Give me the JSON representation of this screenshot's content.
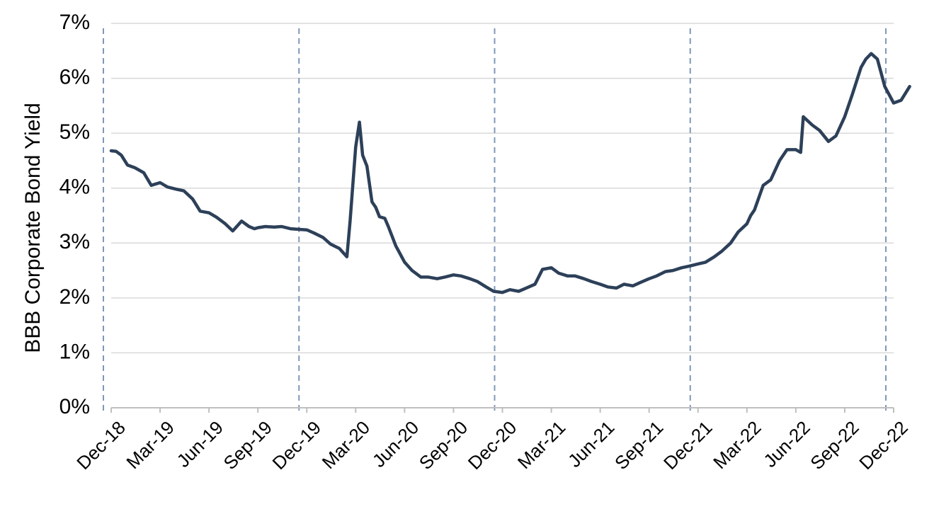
{
  "chart_data": {
    "type": "line",
    "title": "",
    "xlabel": "",
    "ylabel": "BBB Corporate Bond Yield",
    "ylim": [
      0,
      7
    ],
    "y_ticks": [
      "0%",
      "1%",
      "2%",
      "3%",
      "4%",
      "5%",
      "6%",
      "7%"
    ],
    "x_ticks": [
      "Dec-18",
      "Mar-19",
      "Jun-19",
      "Sep-19",
      "Dec-19",
      "Mar-20",
      "Jun-20",
      "Sep-20",
      "Dec-20",
      "Mar-21",
      "Jun-21",
      "Sep-21",
      "Dec-21",
      "Mar-22",
      "Jun-22",
      "Sep-22",
      "Dec-22"
    ],
    "grid": "horizontal",
    "vertical_dashed_markers": [
      "Dec-18",
      "Dec-19",
      "Dec-20",
      "Dec-21",
      "Dec-22"
    ],
    "colors": {
      "line": "#2d4059",
      "grid": "#d9d9d9",
      "markers": "#7f97b8",
      "axis": "#bfbfbf"
    },
    "series": [
      {
        "x": [
          "2018-12-01",
          "2018-12-10",
          "2018-12-20",
          "2019-01-01",
          "2019-01-15",
          "2019-02-01",
          "2019-02-15",
          "2019-03-01",
          "2019-03-15",
          "2019-04-01",
          "2019-04-15",
          "2019-05-01",
          "2019-05-15",
          "2019-06-01",
          "2019-06-15",
          "2019-07-01",
          "2019-07-15",
          "2019-08-01",
          "2019-08-15",
          "2019-08-25",
          "2019-09-01",
          "2019-09-15",
          "2019-10-01",
          "2019-10-15",
          "2019-11-01",
          "2019-11-15",
          "2019-12-01",
          "2019-12-15",
          "2020-01-01",
          "2020-01-15",
          "2020-02-01",
          "2020-02-15",
          "2020-02-21",
          "2020-03-01",
          "2020-03-08",
          "2020-03-14",
          "2020-03-22",
          "2020-04-01",
          "2020-04-08",
          "2020-04-15",
          "2020-04-25",
          "2020-05-01",
          "2020-05-15",
          "2020-06-01",
          "2020-06-15",
          "2020-07-01",
          "2020-07-15",
          "2020-08-01",
          "2020-08-15",
          "2020-09-01",
          "2020-09-15",
          "2020-10-01",
          "2020-10-15",
          "2020-11-01",
          "2020-11-15",
          "2020-12-01",
          "2020-12-15",
          "2021-01-01",
          "2021-01-15",
          "2021-02-01",
          "2021-02-15",
          "2021-03-01",
          "2021-03-15",
          "2021-04-01",
          "2021-04-15",
          "2021-05-01",
          "2021-05-15",
          "2021-06-01",
          "2021-06-15",
          "2021-07-01",
          "2021-07-15",
          "2021-08-01",
          "2021-08-15",
          "2021-09-01",
          "2021-09-15",
          "2021-10-01",
          "2021-10-15",
          "2021-11-01",
          "2021-11-15",
          "2021-12-01",
          "2021-12-15",
          "2022-01-01",
          "2022-01-15",
          "2022-02-01",
          "2022-02-15",
          "2022-03-01",
          "2022-03-08",
          "2022-03-15",
          "2022-04-01",
          "2022-04-15",
          "2022-05-01",
          "2022-05-15",
          "2022-06-01",
          "2022-06-10",
          "2022-06-15",
          "2022-07-01",
          "2022-07-15",
          "2022-08-01",
          "2022-08-15",
          "2022-09-01",
          "2022-09-15",
          "2022-10-01",
          "2022-10-10",
          "2022-10-20",
          "2022-11-01",
          "2022-11-15",
          "2022-12-01",
          "2022-12-15",
          "2022-12-31"
        ],
        "y": [
          4.68,
          4.67,
          4.6,
          4.42,
          4.37,
          4.28,
          4.05,
          4.1,
          4.02,
          3.98,
          3.95,
          3.8,
          3.58,
          3.55,
          3.47,
          3.35,
          3.22,
          3.4,
          3.3,
          3.26,
          3.28,
          3.3,
          3.29,
          3.3,
          3.26,
          3.25,
          3.24,
          3.18,
          3.1,
          2.98,
          2.9,
          2.75,
          3.4,
          4.75,
          5.2,
          4.6,
          4.4,
          3.75,
          3.65,
          3.48,
          3.45,
          3.3,
          2.95,
          2.65,
          2.5,
          2.38,
          2.38,
          2.35,
          2.38,
          2.42,
          2.4,
          2.35,
          2.3,
          2.2,
          2.12,
          2.1,
          2.15,
          2.12,
          2.18,
          2.25,
          2.52,
          2.55,
          2.45,
          2.4,
          2.4,
          2.35,
          2.3,
          2.25,
          2.2,
          2.18,
          2.25,
          2.22,
          2.28,
          2.35,
          2.4,
          2.48,
          2.5,
          2.55,
          2.58,
          2.62,
          2.65,
          2.75,
          2.85,
          3.0,
          3.2,
          3.35,
          3.5,
          3.6,
          4.05,
          4.15,
          4.5,
          4.7,
          4.7,
          4.65,
          5.3,
          5.15,
          5.05,
          4.85,
          4.95,
          5.3,
          5.7,
          6.2,
          6.35,
          6.45,
          6.35,
          5.85,
          5.55,
          5.6,
          5.85
        ]
      }
    ]
  }
}
